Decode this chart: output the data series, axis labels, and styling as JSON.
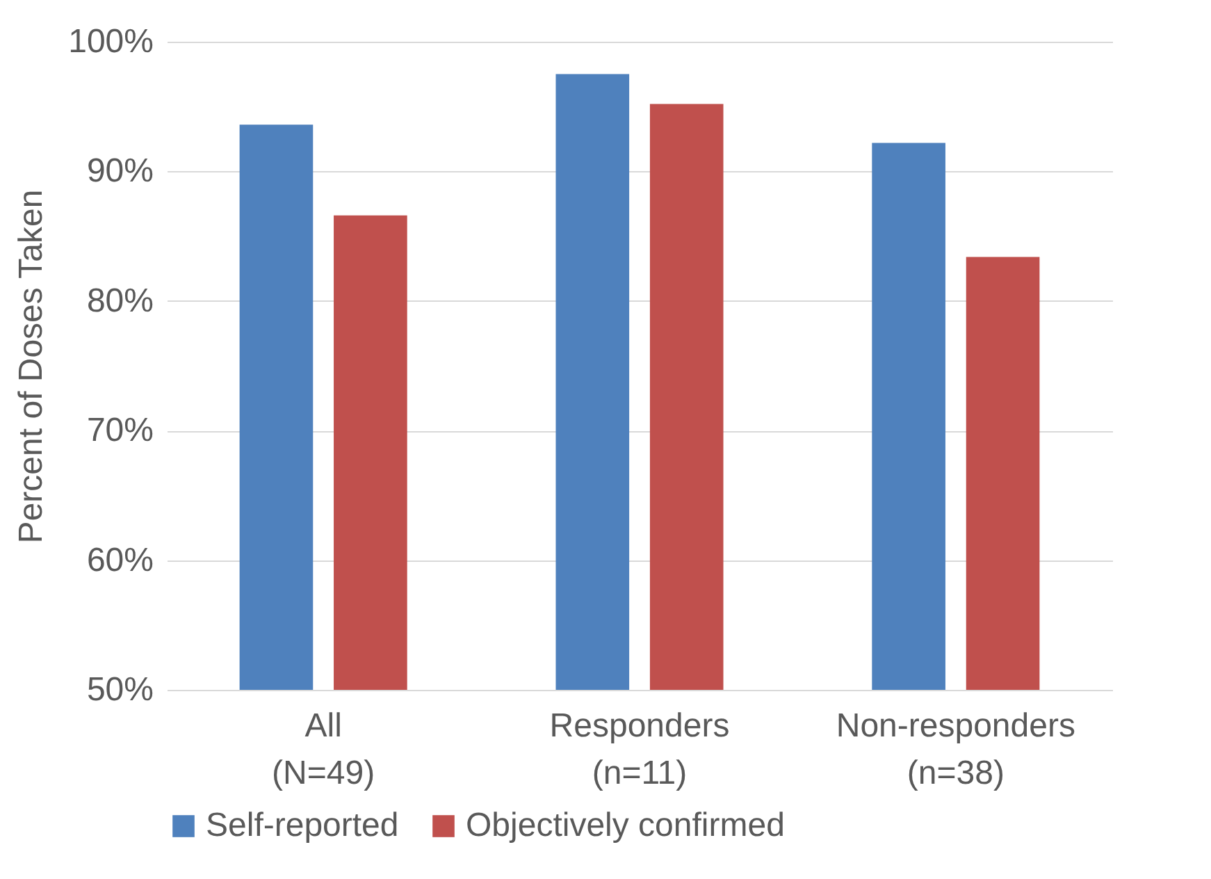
{
  "chart_data": {
    "type": "bar",
    "ylabel": "Percent of Doses Taken",
    "categories": [
      "All\n(N=49)",
      "Responders\n(n=11)",
      "Non-responders\n(n=38)"
    ],
    "series": [
      {
        "name": "Self-reported",
        "color": "#4f81bd",
        "values": [
          93.6,
          97.5,
          92.2
        ]
      },
      {
        "name": "Objectively confirmed",
        "color": "#c0504d",
        "values": [
          86.6,
          95.2,
          83.4
        ]
      }
    ],
    "ylim": [
      50,
      100
    ],
    "yticks": [
      {
        "value": 50,
        "label": "50%"
      },
      {
        "value": 60,
        "label": "60%"
      },
      {
        "value": 70,
        "label": "70%"
      },
      {
        "value": 80,
        "label": "80%"
      },
      {
        "value": 90,
        "label": "90%"
      },
      {
        "value": 100,
        "label": "100%"
      }
    ],
    "grid": "y",
    "legend": "bottom"
  }
}
